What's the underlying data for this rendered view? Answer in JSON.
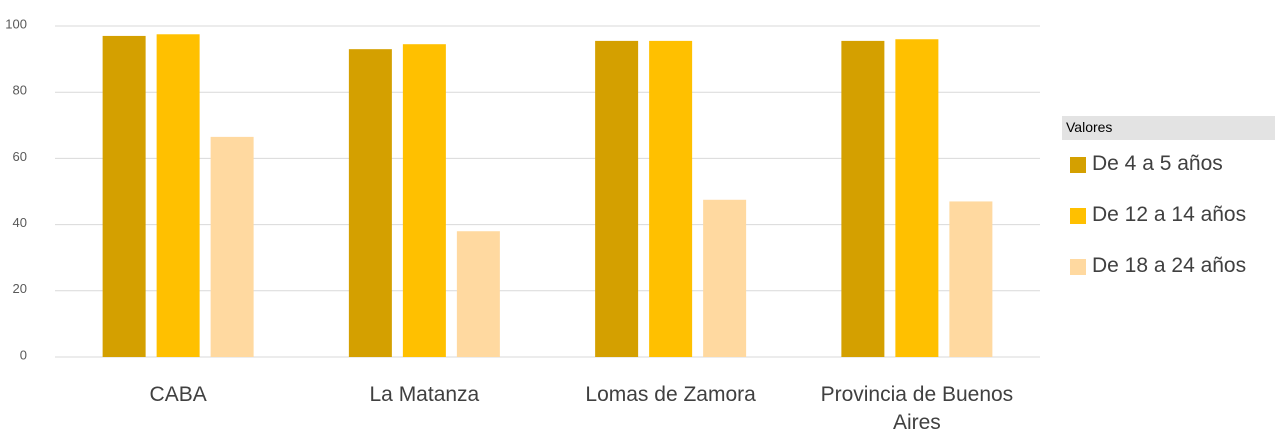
{
  "chart_data": {
    "type": "bar",
    "categories": [
      "CABA",
      "La Matanza",
      "Lomas de Zamora",
      "Provincia de Buenos Aires"
    ],
    "series": [
      {
        "name": "De 4 a 5 años",
        "color": "#d4a000",
        "values": [
          97,
          93,
          95.5,
          95.5
        ]
      },
      {
        "name": "De 12 a 14 años",
        "color": "#ffc000",
        "values": [
          97.5,
          94.5,
          95.5,
          96
        ]
      },
      {
        "name": "De 18 a 24 años",
        "color": "#ffd9a0",
        "values": [
          66.5,
          38,
          47.5,
          47
        ]
      }
    ],
    "ylim": [
      0,
      100
    ],
    "yticks": [
      0,
      20,
      40,
      60,
      80,
      100
    ],
    "grid": true,
    "legend_title": "Valores",
    "legend": "right"
  }
}
